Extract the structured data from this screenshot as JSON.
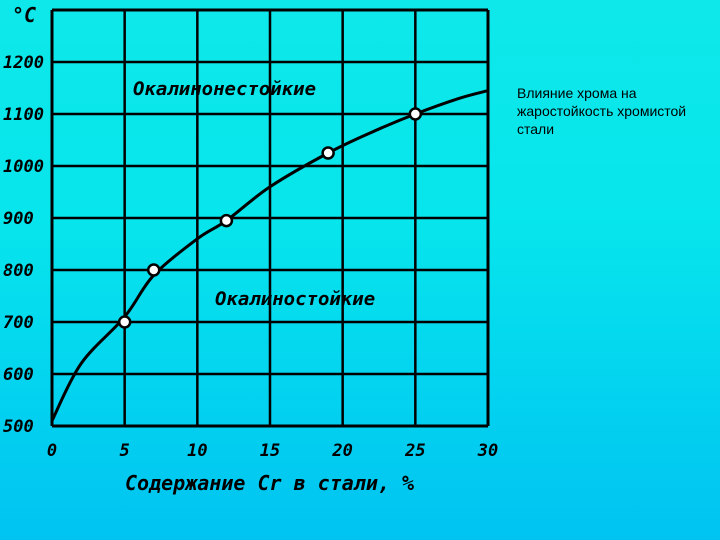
{
  "caption": "Влияние хрома на жаростойкость хромистой стали",
  "chart_data": {
    "type": "line",
    "ylabel": "°C",
    "xlabel": "Содержание Cr в стали, %",
    "x_ticks": [
      "0",
      "5",
      "10",
      "15",
      "20",
      "25",
      "30"
    ],
    "y_ticks": [
      "500",
      "600",
      "700",
      "800",
      "900",
      "1000",
      "1100",
      "1200"
    ],
    "xlim": [
      0,
      30
    ],
    "ylim": [
      500,
      1300
    ],
    "grid": true,
    "regions": {
      "upper": "Окалинонестойкие",
      "lower": "Окалиностойкие"
    },
    "curve": {
      "x": [
        0,
        2,
        5,
        7,
        10,
        12,
        15,
        19,
        22,
        25,
        28,
        30
      ],
      "y": [
        510,
        620,
        710,
        790,
        860,
        895,
        960,
        1025,
        1065,
        1100,
        1130,
        1145
      ]
    },
    "points": {
      "x": [
        5,
        7,
        12,
        19,
        25
      ],
      "y": [
        700,
        800,
        895,
        1025,
        1100
      ]
    }
  }
}
